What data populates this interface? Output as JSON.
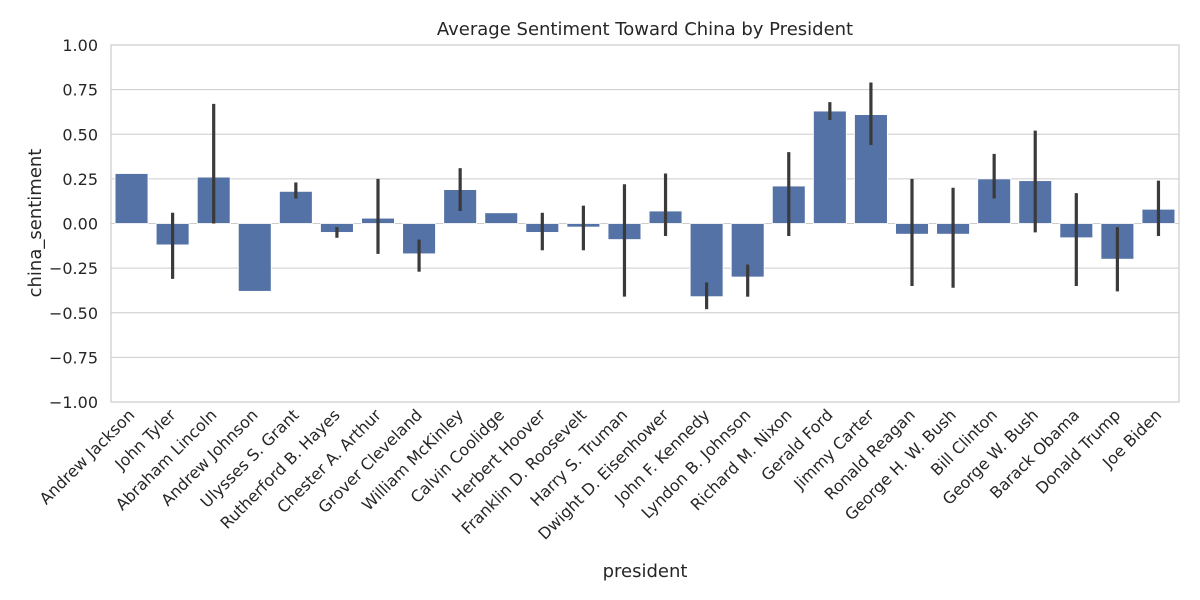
{
  "colors": {
    "bar": "#5572a7",
    "error": "#3a3a3a",
    "grid": "#cccccc"
  },
  "chart_data": {
    "type": "bar",
    "title": "Average Sentiment Toward China by President",
    "xlabel": "president",
    "ylabel": "china_sentiment",
    "ylim": [
      -1.0,
      1.0
    ],
    "yticks": [
      "1.00",
      "0.75",
      "0.50",
      "0.25",
      "0.00",
      "−0.25",
      "−0.50",
      "−0.75",
      "−1.00"
    ],
    "ytick_values": [
      1.0,
      0.75,
      0.5,
      0.25,
      0.0,
      -0.25,
      -0.5,
      -0.75,
      -1.0
    ],
    "grid": true,
    "categories": [
      "Andrew Jackson",
      "John Tyler",
      "Abraham Lincoln",
      "Andrew Johnson",
      "Ulysses S. Grant",
      "Rutherford B. Hayes",
      "Chester A. Arthur",
      "Grover Cleveland",
      "William McKinley",
      "Calvin Coolidge",
      "Herbert Hoover",
      "Franklin D. Roosevelt",
      "Harry S. Truman",
      "Dwight D. Eisenhower",
      "John F. Kennedy",
      "Lyndon B. Johnson",
      "Richard M. Nixon",
      "Gerald Ford",
      "Jimmy Carter",
      "Ronald Reagan",
      "George H. W. Bush",
      "Bill Clinton",
      "George W. Bush",
      "Barack Obama",
      "Donald Trump",
      "Joe Biden"
    ],
    "values": [
      0.28,
      -0.12,
      0.26,
      -0.38,
      0.18,
      -0.05,
      0.03,
      -0.17,
      0.19,
      0.06,
      -0.05,
      -0.02,
      -0.09,
      0.07,
      -0.41,
      -0.3,
      0.21,
      0.63,
      0.61,
      -0.06,
      -0.06,
      0.25,
      0.24,
      -0.08,
      -0.2,
      0.08
    ],
    "error_low": [
      null,
      -0.31,
      0.0,
      null,
      0.14,
      -0.08,
      -0.17,
      -0.27,
      0.07,
      null,
      -0.15,
      -0.15,
      -0.41,
      -0.07,
      -0.48,
      -0.41,
      -0.07,
      0.58,
      0.44,
      -0.35,
      -0.36,
      0.14,
      -0.05,
      -0.35,
      -0.38,
      -0.07
    ],
    "error_high": [
      null,
      0.06,
      0.67,
      null,
      0.23,
      -0.02,
      0.25,
      -0.09,
      0.31,
      null,
      0.06,
      0.1,
      0.22,
      0.28,
      -0.33,
      -0.23,
      0.4,
      0.68,
      0.79,
      0.25,
      0.2,
      0.39,
      0.52,
      0.17,
      -0.02,
      0.24
    ]
  }
}
